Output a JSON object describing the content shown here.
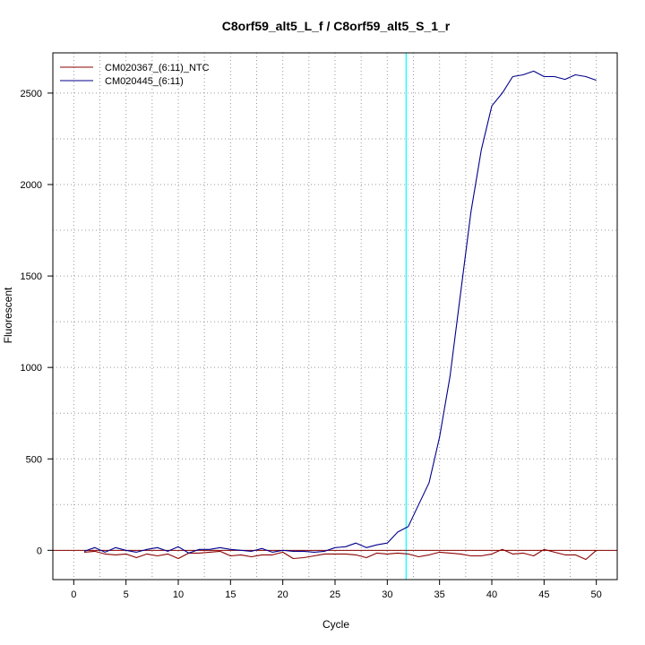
{
  "chart_data": {
    "type": "line",
    "title": "C8orf59_alt5_L_f / C8orf59_alt5_S_1_r",
    "xlabel": "Cycle",
    "ylabel": "Fluorescent",
    "xlim": [
      -2,
      52
    ],
    "ylim": [
      -160,
      2720
    ],
    "x_ticks": [
      0,
      5,
      10,
      15,
      20,
      25,
      30,
      35,
      40,
      45,
      50
    ],
    "y_ticks": [
      0,
      500,
      1000,
      1500,
      2000,
      2500
    ],
    "grid": true,
    "legend_position": "top-left",
    "threshold": {
      "x": 31.8,
      "color": "#00ffff"
    },
    "baseline": {
      "y": 0,
      "color": "#8b0000"
    },
    "series": [
      {
        "name": "CM020367_(6:11)_NTC",
        "color": "#8b0000",
        "x": [
          1,
          2,
          3,
          4,
          5,
          6,
          7,
          8,
          9,
          10,
          11,
          12,
          13,
          14,
          15,
          16,
          17,
          18,
          19,
          20,
          21,
          22,
          23,
          24,
          25,
          26,
          27,
          28,
          29,
          30,
          31,
          32,
          33,
          34,
          35,
          36,
          37,
          38,
          39,
          40,
          41,
          42,
          43,
          44,
          45,
          46,
          47,
          48,
          49,
          50
        ],
        "values": [
          -10,
          -5,
          -20,
          -25,
          -20,
          -40,
          -20,
          -30,
          -20,
          -45,
          -15,
          -15,
          -10,
          -5,
          -30,
          -25,
          -35,
          -25,
          -25,
          -10,
          -45,
          -40,
          -30,
          -20,
          -20,
          -20,
          -25,
          -40,
          -15,
          -20,
          -15,
          -20,
          -35,
          -25,
          -10,
          -15,
          -20,
          -30,
          -30,
          -20,
          5,
          -20,
          -15,
          -30,
          5,
          -10,
          -25,
          -25,
          -50,
          0
        ]
      },
      {
        "name": "CM020445_(6:11)",
        "color": "#00008b",
        "x": [
          1,
          2,
          3,
          4,
          5,
          6,
          7,
          8,
          9,
          10,
          11,
          12,
          13,
          14,
          15,
          16,
          17,
          18,
          19,
          20,
          21,
          22,
          23,
          24,
          25,
          26,
          27,
          28,
          29,
          30,
          31,
          32,
          33,
          34,
          35,
          36,
          37,
          38,
          39,
          40,
          41,
          42,
          43,
          44,
          45,
          46,
          47,
          48,
          49,
          50
        ],
        "values": [
          -5,
          15,
          -10,
          15,
          0,
          -10,
          5,
          15,
          -5,
          20,
          -15,
          5,
          5,
          15,
          5,
          0,
          -5,
          10,
          -10,
          0,
          -5,
          -5,
          -10,
          -5,
          15,
          20,
          40,
          15,
          30,
          40,
          100,
          130,
          250,
          370,
          620,
          950,
          1400,
          1850,
          2190,
          2430,
          2500,
          2590,
          2600,
          2620,
          2590,
          2590,
          2575,
          2600,
          2590,
          2570
        ]
      }
    ]
  }
}
